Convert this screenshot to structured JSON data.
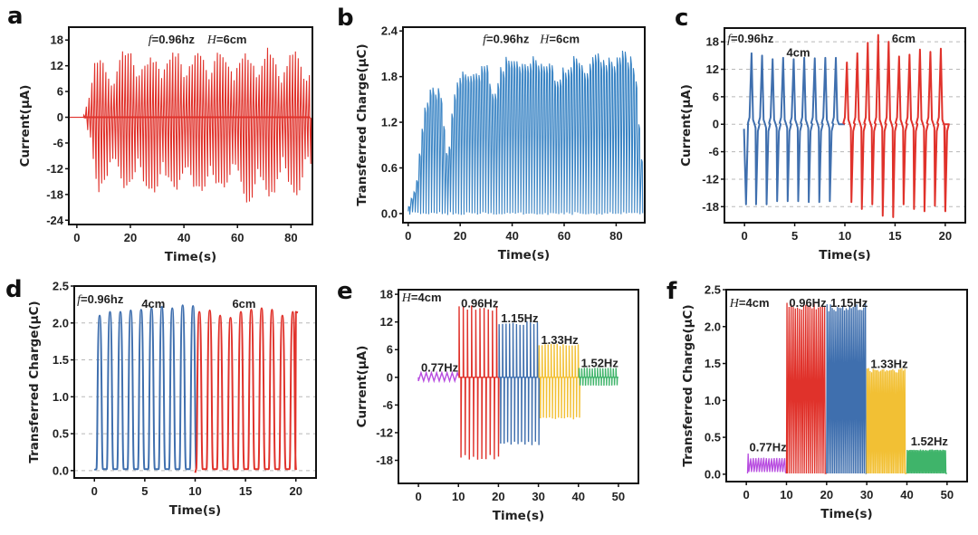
{
  "figure": {
    "colors": {
      "red": "#e0322b",
      "blue": "#3f6fae",
      "blue_light": "#3a84c4",
      "purple": "#b84ee0",
      "yellow": "#f2c034",
      "green": "#3fb46a",
      "grid": "#b8b8b8",
      "frame": "#111111"
    }
  },
  "chart_data": [
    {
      "id": "a",
      "panel_letter": "a",
      "type": "line",
      "signal": "current-ac",
      "xlabel": "Time(s)",
      "ylabel": "Current(μA)",
      "xlim": [
        -3,
        88
      ],
      "ylim": [
        -25,
        21
      ],
      "xticks": [
        0,
        20,
        40,
        60,
        80
      ],
      "yticks": [
        -24,
        -18,
        -12,
        -6,
        0,
        6,
        12,
        18
      ],
      "ytick_labels": [
        "-24",
        "-18",
        "-12",
        "-6",
        "0",
        "6",
        "12",
        "18"
      ],
      "grid": false,
      "annotations": [
        {
          "italic": "f",
          "text": "=0.96hz",
          "x": 26,
          "y": 18.3
        },
        {
          "italic": "H",
          "text": "=6cm",
          "x": 48,
          "y": 18.3
        }
      ],
      "series": [
        {
          "name": "6cm",
          "color": "#e0322b",
          "t_start": 2.5,
          "t_end": 87,
          "freq_hz": 0.96,
          "ramp_s": 4,
          "pos_peak_envelope": [
            15,
            14.8,
            12,
            15.5,
            16.5,
            13,
            16,
            15,
            16.5,
            14,
            17,
            15,
            16,
            14,
            17,
            15,
            14.5,
            15.5,
            13
          ],
          "neg_peak_envelope": [
            -17,
            -18,
            -14,
            -17,
            -17.5,
            -18,
            -19,
            -16,
            -18,
            -17.5,
            -19,
            -17,
            -18,
            -20,
            -21,
            -18,
            -17,
            -18,
            -15
          ]
        }
      ]
    },
    {
      "id": "b",
      "panel_letter": "b",
      "type": "line",
      "signal": "charge",
      "xlabel": "Time(s)",
      "ylabel": "Transferred Charge(μC)",
      "xlim": [
        -2,
        91
      ],
      "ylim": [
        -0.12,
        2.45
      ],
      "xticks": [
        0,
        20,
        40,
        60,
        80
      ],
      "yticks": [
        0.0,
        0.6,
        1.2,
        1.8,
        2.4
      ],
      "ytick_labels": [
        "0.0",
        "0.6",
        "1.2",
        "1.8",
        "2.4"
      ],
      "grid": false,
      "annotations": [
        {
          "italic": "f",
          "text": "=0.96hz",
          "x": 28,
          "y": 2.3
        },
        {
          "italic": "H",
          "text": "=6cm",
          "x": 50,
          "y": 2.3
        }
      ],
      "series": [
        {
          "name": "6cm",
          "color": "#3a84c4",
          "t_start": 0,
          "t_end": 90,
          "freq_hz": 0.96,
          "peak_envelope": [
            0.1,
            0.4,
            1.5,
            1.7,
            1.75,
            0.7,
            1.85,
            1.95,
            1.9,
            2.0,
            2.05,
            1.6,
            2.05,
            2.1,
            2.0,
            2.15,
            2.15,
            2.05,
            2.1,
            1.8,
            2.0,
            2.15,
            2.1,
            2.0,
            2.15,
            2.15,
            2.1,
            2.2,
            2.15,
            2.05,
            0.5
          ]
        }
      ]
    },
    {
      "id": "c",
      "panel_letter": "c",
      "type": "line",
      "signal": "current-ac",
      "xlabel": "Time(s)",
      "ylabel": "Current(μA)",
      "xlim": [
        -2,
        22
      ],
      "ylim": [
        -21.5,
        21
      ],
      "xticks": [
        0,
        5,
        10,
        15,
        20
      ],
      "yticks": [
        -18,
        -12,
        -6,
        0,
        6,
        12,
        18
      ],
      "ytick_labels": [
        "-18",
        "-12",
        "-6",
        "0",
        "6",
        "12",
        "18"
      ],
      "grid": true,
      "annotations": [
        {
          "italic": "f",
          "text": "=0.96hz",
          "x": -1.9,
          "y": 18.8
        },
        {
          "italic": "",
          "text": "4cm",
          "x": 4.0,
          "y": 15.8
        },
        {
          "italic": "",
          "text": "6cm",
          "x": 14.5,
          "y": 18.8
        }
      ],
      "series": [
        {
          "name": "4cm",
          "color": "#3f6fae",
          "t_start": 0,
          "t_end": 10,
          "pos_peaks": [
            15.5,
            15.0,
            14.2,
            14.5,
            14.2,
            14.5,
            14.4,
            14.5,
            14.5
          ],
          "neg_peaks": [
            -17.5,
            -17.5,
            -17.5,
            -16.8,
            -16.8,
            -16.8,
            -17.0,
            -17.0,
            -16.8
          ]
        },
        {
          "name": "6cm",
          "color": "#e0322b",
          "t_start": 10,
          "t_end": 20,
          "pos_peaks": [
            13.5,
            15.5,
            17.8,
            19.5,
            18.0,
            14.8,
            15.2,
            16.3,
            15.8,
            16.5
          ],
          "neg_peaks": [
            -17.0,
            -18.5,
            -17.5,
            -20.0,
            -20.3,
            -17.5,
            -18.5,
            -19.0,
            -17.8,
            -19.0
          ]
        }
      ]
    },
    {
      "id": "d",
      "panel_letter": "d",
      "type": "line",
      "signal": "charge",
      "xlabel": "Time(s)",
      "ylabel": "Transferred Charge(μC)",
      "xlim": [
        -2,
        22
      ],
      "ylim": [
        -0.1,
        2.5
      ],
      "xticks": [
        0,
        5,
        10,
        15,
        20
      ],
      "yticks": [
        0.0,
        0.5,
        1.0,
        1.5,
        2.0,
        2.5
      ],
      "ytick_labels": [
        "0.0",
        "0.5",
        "1.0",
        "1.5",
        "2.0",
        "2.5"
      ],
      "grid": true,
      "annotations": [
        {
          "italic": "f",
          "text": "=0.96hz",
          "x": -1.9,
          "y": 2.33
        },
        {
          "italic": "",
          "text": "4cm",
          "x": 4.5,
          "y": 2.27
        },
        {
          "italic": "",
          "text": "6cm",
          "x": 13.5,
          "y": 2.27
        }
      ],
      "series": [
        {
          "name": "4cm",
          "color": "#3f6fae",
          "t_start": 0,
          "t_end": 10,
          "peaks": [
            2.1,
            2.15,
            2.15,
            2.17,
            2.18,
            2.2,
            2.22,
            2.2,
            2.24,
            2.23
          ]
        },
        {
          "name": "6cm",
          "color": "#e0322b",
          "t_start": 10,
          "t_end": 20,
          "peaks": [
            2.15,
            2.17,
            2.1,
            2.07,
            2.15,
            2.18,
            2.2,
            2.18,
            2.1,
            2.15
          ]
        }
      ]
    },
    {
      "id": "e",
      "panel_letter": "e",
      "type": "line",
      "signal": "current-ac",
      "xlabel": "Time(s)",
      "ylabel": "Current(μA)",
      "xlim": [
        -5,
        55
      ],
      "ylim": [
        -23,
        19
      ],
      "xticks": [
        0,
        10,
        20,
        30,
        40,
        50
      ],
      "yticks": [
        -18,
        -12,
        -6,
        0,
        6,
        12,
        18
      ],
      "ytick_labels": [
        "-18",
        "-12",
        "-6",
        "0",
        "6",
        "12",
        "18"
      ],
      "grid": false,
      "annotations": [
        {
          "italic": "H",
          "text": "=4cm",
          "x": -4.6,
          "y": 17.4
        },
        {
          "italic": "",
          "text": "0.77Hz",
          "x": 0.2,
          "y": 2.2
        },
        {
          "italic": "",
          "text": "0.96Hz",
          "x": 10.2,
          "y": 16.2
        },
        {
          "italic": "",
          "text": "1.15Hz",
          "x": 20.2,
          "y": 12.9
        },
        {
          "italic": "",
          "text": "1.33Hz",
          "x": 30.2,
          "y": 8.2
        },
        {
          "italic": "",
          "text": "1.52Hz",
          "x": 40.2,
          "y": 3.2
        }
      ],
      "series": [
        {
          "name": "0.77Hz",
          "color": "#b84ee0",
          "t_start": 0,
          "t_end": 10,
          "freq_hz": 0.77,
          "pos_amp": 1.0,
          "neg_amp": -0.8,
          "shape": "zigzag"
        },
        {
          "name": "0.96Hz",
          "color": "#e0322b",
          "t_start": 10,
          "t_end": 20,
          "freq_hz": 0.96,
          "pos_amp": 15.0,
          "neg_amp": -17.5
        },
        {
          "name": "1.15Hz",
          "color": "#3f6fae",
          "t_start": 20,
          "t_end": 30,
          "freq_hz": 1.15,
          "pos_amp": 11.8,
          "neg_amp": -14.5
        },
        {
          "name": "1.33Hz",
          "color": "#f2c034",
          "t_start": 30,
          "t_end": 40,
          "freq_hz": 1.33,
          "pos_amp": 7.0,
          "neg_amp": -9.0
        },
        {
          "name": "1.52Hz",
          "color": "#3fb46a",
          "t_start": 40,
          "t_end": 50,
          "freq_hz": 1.52,
          "pos_amp": 2.0,
          "neg_amp": -1.8
        }
      ]
    },
    {
      "id": "f",
      "panel_letter": "f",
      "type": "line",
      "signal": "charge",
      "xlabel": "Time(s)",
      "ylabel": "Transferred Charge(μC)",
      "xlim": [
        -5,
        55
      ],
      "ylim": [
        -0.1,
        2.5
      ],
      "xticks": [
        0,
        10,
        20,
        30,
        40,
        50
      ],
      "yticks": [
        0.0,
        0.5,
        1.0,
        1.5,
        2.0,
        2.5
      ],
      "ytick_labels": [
        "0.0",
        "0.5",
        "1.0",
        "1.5",
        "2.0",
        "2.5"
      ],
      "grid": false,
      "annotations": [
        {
          "italic": "H",
          "text": "=4cm",
          "x": -4.6,
          "y": 2.33
        },
        {
          "italic": "",
          "text": "0.96Hz",
          "x": 10.2,
          "y": 2.33
        },
        {
          "italic": "",
          "text": "1.15Hz",
          "x": 20.5,
          "y": 2.33
        },
        {
          "italic": "",
          "text": "0.77Hz",
          "x": 0.3,
          "y": 0.37
        },
        {
          "italic": "",
          "text": "1.33Hz",
          "x": 30.5,
          "y": 1.5
        },
        {
          "italic": "",
          "text": "1.52Hz",
          "x": 40.5,
          "y": 0.45
        }
      ],
      "series": [
        {
          "name": "0.77Hz",
          "color": "#b84ee0",
          "t_start": 0.3,
          "t_end": 10,
          "freq_hz": 0.77,
          "peak": 0.22,
          "first_peak": 0.28
        },
        {
          "name": "0.96Hz",
          "color": "#e0322b",
          "t_start": 10,
          "t_end": 20,
          "freq_hz": 0.96,
          "peak": 2.28
        },
        {
          "name": "1.15Hz",
          "color": "#3f6fae",
          "t_start": 20,
          "t_end": 30,
          "freq_hz": 1.15,
          "peak": 2.27
        },
        {
          "name": "1.33Hz",
          "color": "#f2c034",
          "t_start": 30,
          "t_end": 40,
          "freq_hz": 1.33,
          "peak": 1.42
        },
        {
          "name": "1.52Hz",
          "color": "#3fb46a",
          "t_start": 40,
          "t_end": 50,
          "freq_hz": 1.52,
          "peak": 0.33
        }
      ]
    }
  ]
}
